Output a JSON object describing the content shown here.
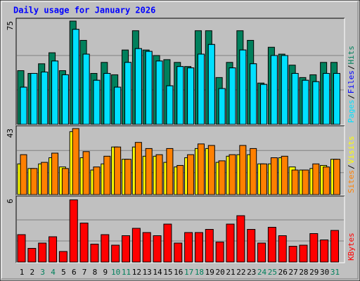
{
  "chart_data": [
    {
      "type": "bar",
      "title": "Daily usage for January 2026",
      "categories": [
        1,
        2,
        3,
        4,
        5,
        6,
        7,
        8,
        9,
        10,
        11,
        12,
        13,
        14,
        15,
        16,
        17,
        18,
        19,
        20,
        21,
        22,
        23,
        24,
        25,
        26,
        27,
        28,
        29,
        30,
        31
      ],
      "category_colors": [
        "#000000",
        "#000000",
        "#00805c",
        "#00805c",
        "#000000",
        "#000000",
        "#000000",
        "#000000",
        "#000000",
        "#00805c",
        "#00805c",
        "#000000",
        "#000000",
        "#000000",
        "#000000",
        "#000000",
        "#00805c",
        "#00805c",
        "#000000",
        "#000000",
        "#000000",
        "#000000",
        "#000000",
        "#00805c",
        "#00805c",
        "#000000",
        "#000000",
        "#000000",
        "#000000",
        "#000000",
        "#00805c"
      ],
      "separator": "/",
      "series": [
        {
          "name": "Hits",
          "color": "#00805c",
          "values": [
            39,
            37,
            44,
            52,
            39,
            75,
            61,
            37,
            45,
            36,
            54,
            68,
            54,
            50,
            47,
            45,
            42,
            68,
            68,
            34,
            45,
            68,
            61,
            30,
            56,
            51,
            43,
            34,
            36,
            45,
            45
          ]
        },
        {
          "name": "Files",
          "color": "#0000ff",
          "values": [
            27,
            37,
            38,
            46,
            36,
            69,
            51,
            32,
            37,
            27,
            45,
            55,
            53,
            46,
            28,
            42,
            41,
            51,
            58,
            26,
            41,
            54,
            44,
            29,
            50,
            50,
            37,
            32,
            31,
            37,
            37
          ]
        },
        {
          "name": "Pages",
          "color": "#00e0ff",
          "values": [
            27,
            37,
            38,
            46,
            36,
            69,
            51,
            32,
            37,
            27,
            45,
            55,
            53,
            46,
            28,
            42,
            41,
            51,
            58,
            26,
            41,
            54,
            44,
            29,
            50,
            50,
            37,
            32,
            31,
            37,
            37
          ]
        }
      ],
      "ylim": [
        0,
        75
      ],
      "yticks": [
        75
      ],
      "grid_values": [
        25,
        50
      ]
    },
    {
      "type": "bar",
      "separator": "/",
      "series": [
        {
          "name": "Visits",
          "color": "#ffff00",
          "values": [
            20,
            17,
            20,
            24,
            18,
            41,
            24,
            16,
            20,
            31,
            23,
            31,
            25,
            25,
            21,
            18,
            24,
            30,
            30,
            21,
            25,
            26,
            26,
            20,
            20,
            24,
            18,
            16,
            17,
            19,
            23
          ]
        },
        {
          "name": "Sites",
          "color": "#ff8000",
          "values": [
            26,
            17,
            21,
            27,
            17,
            43,
            28,
            18,
            25,
            31,
            23,
            34,
            30,
            26,
            30,
            19,
            26,
            33,
            32,
            22,
            26,
            32,
            30,
            20,
            24,
            25,
            16,
            16,
            20,
            18,
            23
          ]
        }
      ],
      "ylim": [
        0,
        43
      ],
      "yticks": [
        43
      ],
      "grid_values": [
        14.3,
        28.7
      ]
    },
    {
      "type": "bar",
      "series": [
        {
          "name": "KBytes",
          "color": "#ff0000",
          "values": [
            2.6,
            1.3,
            1.8,
            2.4,
            1.0,
            5.9,
            3.7,
            1.7,
            2.6,
            1.6,
            2.5,
            3.2,
            2.8,
            2.5,
            3.6,
            1.8,
            2.8,
            2.8,
            3.1,
            1.9,
            3.6,
            4.4,
            3.1,
            1.8,
            3.3,
            2.5,
            1.5,
            1.6,
            2.7,
            2.1,
            3.0
          ]
        }
      ],
      "ylim": [
        0,
        6
      ],
      "yticks": [
        6
      ],
      "grid_values": [
        2,
        4
      ]
    }
  ]
}
